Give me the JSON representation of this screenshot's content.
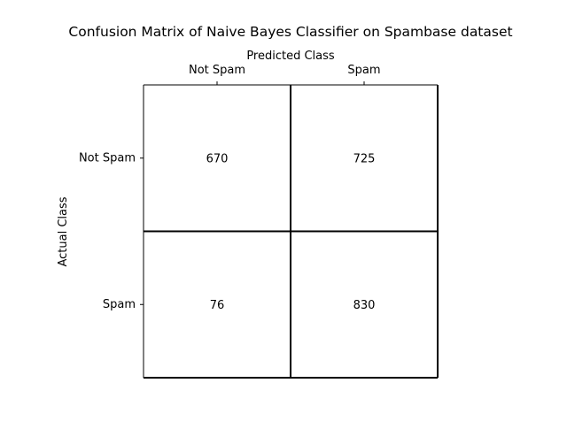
{
  "chart_data": {
    "type": "heatmap",
    "title": "Confusion Matrix of Naive Bayes Classifier on Spambase dataset",
    "xlabel": "Predicted Class",
    "ylabel": "Actual Class",
    "x_categories": [
      "Not Spam",
      "Spam"
    ],
    "y_categories": [
      "Not Spam",
      "Spam"
    ],
    "values": [
      [
        670,
        725
      ],
      [
        76,
        830
      ]
    ],
    "x_axis_position": "top",
    "grid": true
  },
  "colors": {
    "cell_fill": "#ffffff",
    "lines": "#000000",
    "text": "#000000"
  }
}
